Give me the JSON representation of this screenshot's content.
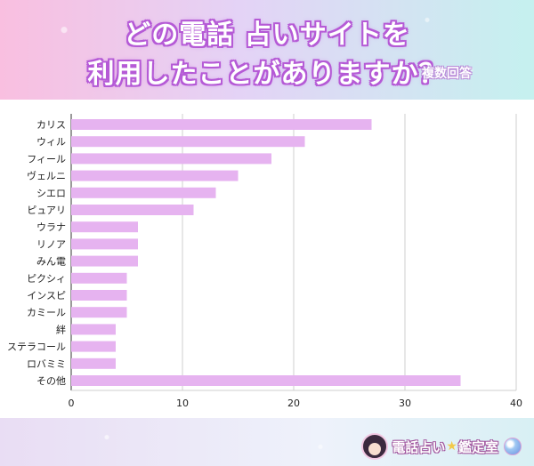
{
  "header": {
    "title_line1": "どの電話 占いサイトを",
    "title_line2": "利用したことがありますか？",
    "note": "複数回答"
  },
  "logo": {
    "text_part1": "電話占い",
    "star": "★",
    "text_part2": "鑑定室",
    "icons": [
      "avatar-icon",
      "crystal-ball-icon"
    ]
  },
  "chart_data": {
    "type": "bar",
    "orientation": "horizontal",
    "categories": [
      "カリス",
      "ウィル",
      "フィール",
      "ヴェルニ",
      "シエロ",
      "ピュアリ",
      "ウラナ",
      "リノア",
      "みん電",
      "ピクシィ",
      "インスピ",
      "カミール",
      "絆",
      "ステラコール",
      "ロバミミ",
      "その他"
    ],
    "values": [
      27,
      21,
      18,
      15,
      13,
      11,
      6,
      6,
      6,
      5,
      5,
      5,
      4,
      4,
      4,
      35
    ],
    "xlim": [
      0,
      40
    ],
    "xticks": [
      0,
      10,
      20,
      30,
      40
    ],
    "grid": true,
    "bar_color": "#e6b3f0",
    "title": "",
    "xlabel": "",
    "ylabel": ""
  }
}
